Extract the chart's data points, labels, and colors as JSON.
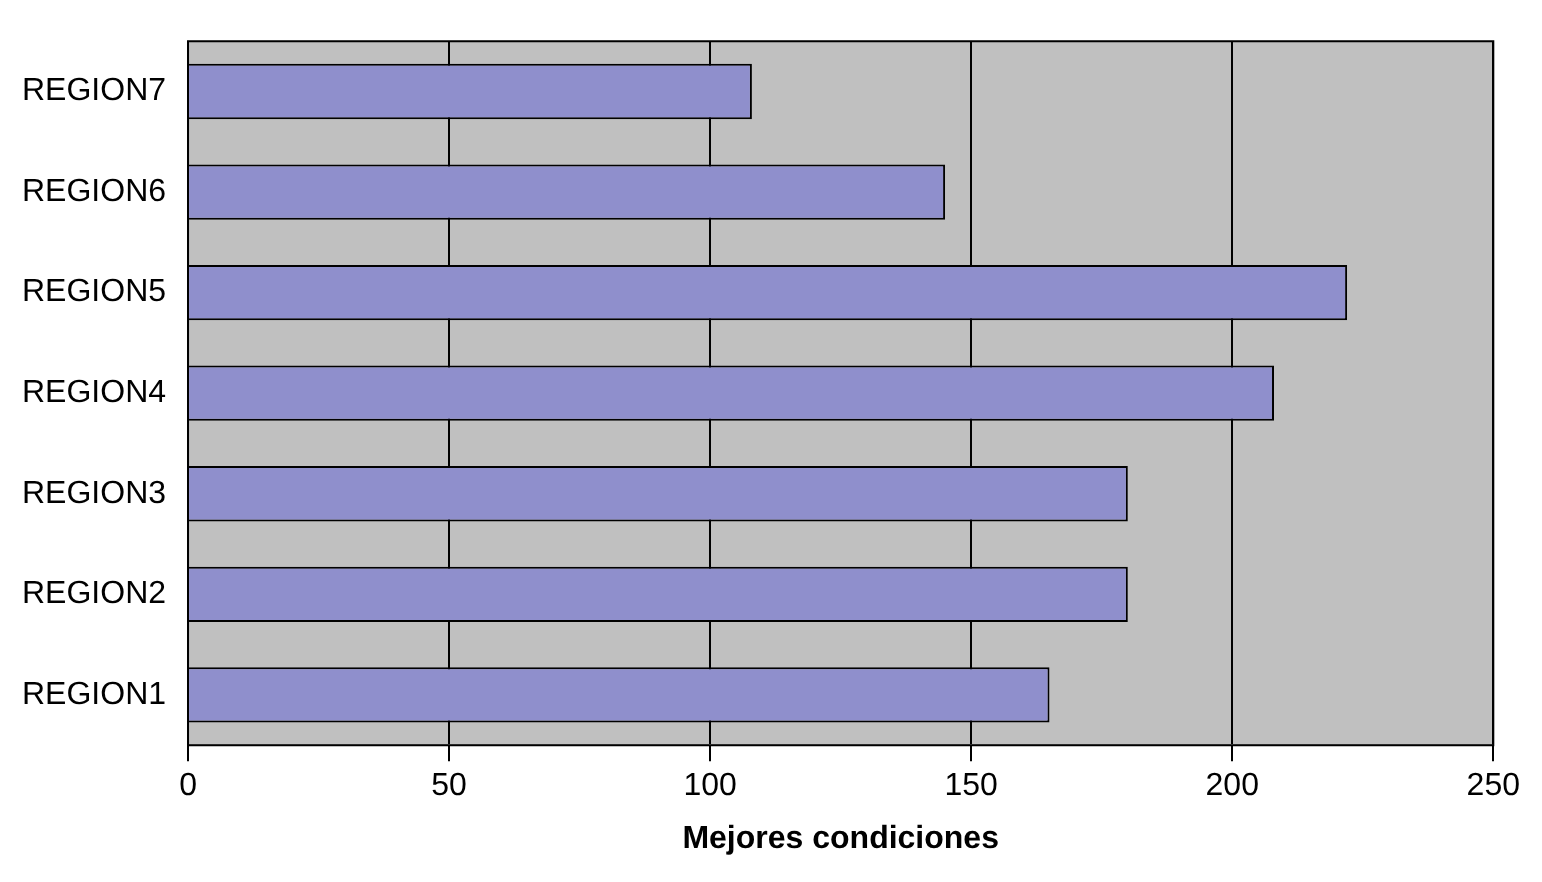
{
  "chart_data": {
    "type": "bar",
    "orientation": "horizontal",
    "xlabel": "Mejores condiciones",
    "categories": [
      "REGION7",
      "REGION6",
      "REGION5",
      "REGION4",
      "REGION3",
      "REGION2",
      "REGION1"
    ],
    "values": [
      108,
      145,
      222,
      208,
      180,
      180,
      165
    ],
    "color": "#8f8fcc",
    "xlim": [
      0,
      250
    ],
    "xticks": [
      0,
      50,
      100,
      150,
      200,
      250
    ],
    "grid": "x",
    "legend": false
  }
}
